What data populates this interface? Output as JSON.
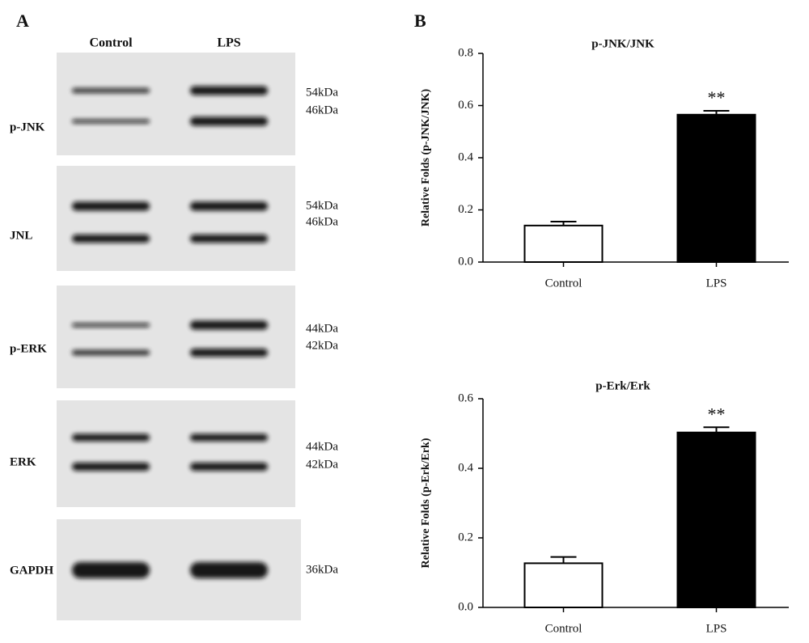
{
  "panel_labels": [
    "A",
    "B"
  ],
  "blot": {
    "lanes": [
      "Control",
      "LPS"
    ],
    "rows": [
      {
        "label": "p-JNK",
        "markers": [
          "54kDa",
          "46kDa"
        ]
      },
      {
        "label": "JNL",
        "markers": [
          "54kDa",
          "46kDa"
        ]
      },
      {
        "label": "p-ERK",
        "markers": [
          "44kDa",
          "42kDa"
        ]
      },
      {
        "label": "ERK",
        "markers": [
          "44kDa",
          "42kDa"
        ]
      },
      {
        "label": "GAPDH",
        "markers": [
          "36kDa"
        ]
      }
    ]
  },
  "chart_data": [
    {
      "type": "bar",
      "title": "p-JNK/JNK",
      "y_label": "Relative Folds (p-JNK/JNK)",
      "categories": [
        "Control",
        "LPS"
      ],
      "values": [
        0.14,
        0.565
      ],
      "errors": [
        0.015,
        0.015
      ],
      "colors": [
        "#ffffff",
        "#000000"
      ],
      "annotations": [
        null,
        "**"
      ],
      "ylim": [
        0,
        0.8
      ],
      "yticks": [
        {
          "value": 0,
          "label": "0.0"
        },
        0.2,
        0.4,
        0.6,
        0.8
      ]
    },
    {
      "type": "bar",
      "title": "p-Erk/Erk",
      "y_label": "Relative Folds (p-Erk/Erk)",
      "categories": [
        "Control",
        "LPS"
      ],
      "values": [
        0.127,
        0.503
      ],
      "errors": [
        0.018,
        0.015
      ],
      "colors": [
        "#ffffff",
        "#000000"
      ],
      "annotations": [
        null,
        "**"
      ],
      "ylim": [
        0,
        0.6
      ],
      "yticks": [
        {
          "value": 0,
          "label": "0.0"
        },
        0.2,
        0.4,
        0.6
      ]
    }
  ]
}
